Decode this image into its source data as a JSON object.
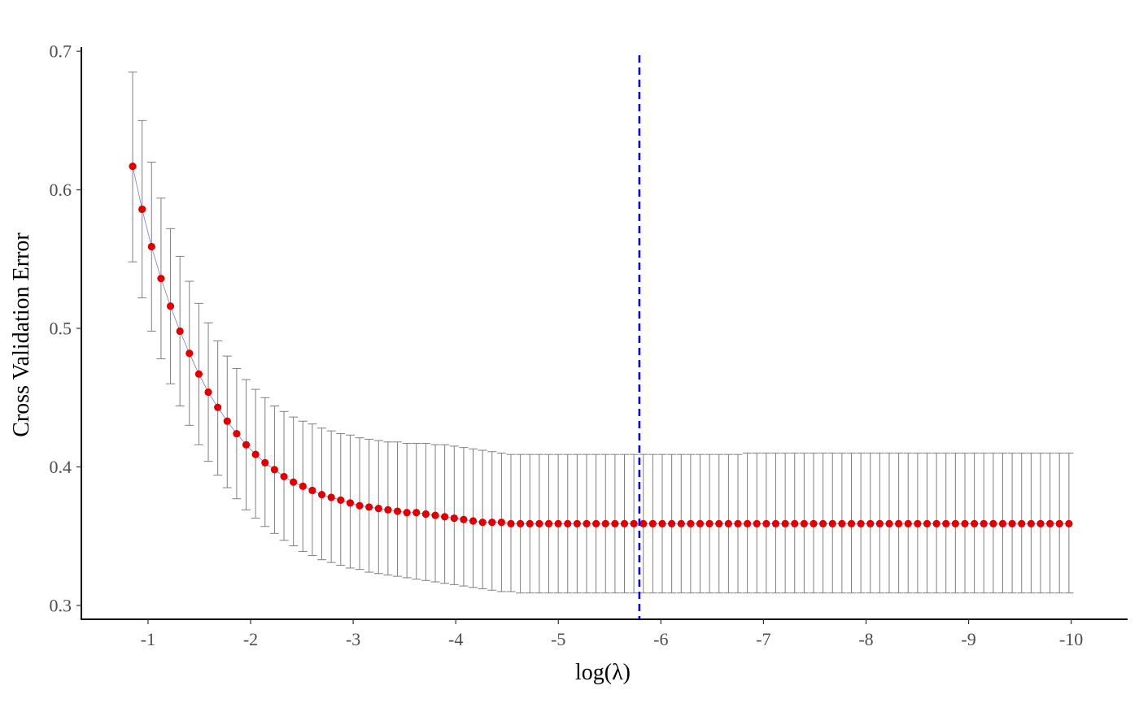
{
  "chart_data": {
    "type": "scatter",
    "title": "",
    "xlabel": "log(λ)",
    "ylabel": "Cross Validation Error",
    "x_reversed": true,
    "xlim": [
      -0.35,
      -10.55
    ],
    "ylim": [
      0.29,
      0.703
    ],
    "x_ticks": [
      -1,
      -2,
      -3,
      -4,
      -5,
      -6,
      -7,
      -8,
      -9,
      -10
    ],
    "x_tick_labels": [
      "-1",
      "-2",
      "-3",
      "-4",
      "-5",
      "-6",
      "-7",
      "-8",
      "-9",
      "-10"
    ],
    "y_ticks": [
      0.3,
      0.4,
      0.5,
      0.6,
      0.7
    ],
    "y_tick_labels": [
      "0.3",
      "0.4",
      "0.5",
      "0.6",
      "0.7"
    ],
    "grid": false,
    "legend": "none",
    "colors": {
      "point": "#e00000",
      "line": "#7a7ad0",
      "errorbar": "#7f7f7f",
      "vline": "#0000e6",
      "axis": "#000000"
    },
    "vline_x": -5.79,
    "x_start": -0.85,
    "x_step": -0.0922,
    "y_mean": [
      0.617,
      0.586,
      0.559,
      0.536,
      0.516,
      0.498,
      0.482,
      0.467,
      0.454,
      0.443,
      0.433,
      0.424,
      0.416,
      0.409,
      0.403,
      0.398,
      0.393,
      0.389,
      0.386,
      0.383,
      0.38,
      0.378,
      0.376,
      0.374,
      0.372,
      0.371,
      0.37,
      0.369,
      0.368,
      0.367,
      0.367,
      0.366,
      0.365,
      0.364,
      0.363,
      0.362,
      0.361,
      0.36,
      0.36,
      0.36,
      0.359,
      0.359,
      0.359,
      0.359,
      0.359,
      0.359,
      0.359,
      0.359,
      0.359,
      0.359,
      0.359,
      0.359,
      0.359,
      0.359,
      0.359,
      0.359,
      0.359,
      0.359,
      0.359,
      0.359,
      0.359,
      0.359,
      0.359,
      0.359,
      0.359,
      0.359,
      0.359,
      0.359,
      0.359,
      0.359,
      0.359,
      0.359,
      0.359,
      0.359,
      0.359,
      0.359,
      0.359,
      0.359,
      0.359,
      0.359,
      0.359,
      0.359,
      0.359,
      0.359,
      0.359,
      0.359,
      0.359,
      0.359,
      0.359,
      0.359,
      0.359,
      0.359,
      0.359,
      0.359,
      0.359,
      0.359,
      0.359,
      0.359,
      0.359,
      0.359
    ],
    "y_upper": [
      0.685,
      0.65,
      0.62,
      0.594,
      0.572,
      0.552,
      0.534,
      0.518,
      0.504,
      0.491,
      0.48,
      0.471,
      0.463,
      0.456,
      0.45,
      0.444,
      0.44,
      0.436,
      0.433,
      0.431,
      0.428,
      0.426,
      0.424,
      0.423,
      0.421,
      0.42,
      0.419,
      0.418,
      0.418,
      0.417,
      0.417,
      0.417,
      0.416,
      0.416,
      0.415,
      0.414,
      0.413,
      0.412,
      0.411,
      0.41,
      0.409,
      0.409,
      0.409,
      0.409,
      0.409,
      0.409,
      0.409,
      0.409,
      0.409,
      0.409,
      0.409,
      0.409,
      0.409,
      0.409,
      0.409,
      0.409,
      0.409,
      0.409,
      0.409,
      0.409,
      0.409,
      0.409,
      0.409,
      0.409,
      0.409,
      0.41,
      0.41,
      0.41,
      0.41,
      0.41,
      0.41,
      0.41,
      0.41,
      0.41,
      0.41,
      0.41,
      0.41,
      0.41,
      0.41,
      0.41,
      0.41,
      0.41,
      0.41,
      0.41,
      0.41,
      0.41,
      0.41,
      0.41,
      0.41,
      0.41,
      0.41,
      0.41,
      0.41,
      0.41,
      0.41,
      0.41,
      0.41,
      0.41,
      0.41,
      0.41
    ],
    "y_lower": [
      0.548,
      0.522,
      0.498,
      0.478,
      0.46,
      0.444,
      0.43,
      0.416,
      0.404,
      0.394,
      0.385,
      0.377,
      0.369,
      0.363,
      0.357,
      0.352,
      0.347,
      0.343,
      0.339,
      0.336,
      0.333,
      0.331,
      0.329,
      0.327,
      0.326,
      0.324,
      0.323,
      0.322,
      0.321,
      0.32,
      0.319,
      0.318,
      0.317,
      0.316,
      0.315,
      0.314,
      0.313,
      0.312,
      0.311,
      0.31,
      0.31,
      0.309,
      0.309,
      0.309,
      0.309,
      0.309,
      0.309,
      0.309,
      0.309,
      0.309,
      0.309,
      0.309,
      0.309,
      0.309,
      0.309,
      0.309,
      0.309,
      0.309,
      0.309,
      0.309,
      0.309,
      0.309,
      0.309,
      0.309,
      0.309,
      0.309,
      0.309,
      0.309,
      0.309,
      0.309,
      0.309,
      0.309,
      0.309,
      0.309,
      0.309,
      0.309,
      0.309,
      0.309,
      0.309,
      0.309,
      0.309,
      0.309,
      0.309,
      0.309,
      0.309,
      0.309,
      0.309,
      0.309,
      0.309,
      0.309,
      0.309,
      0.309,
      0.309,
      0.309,
      0.309,
      0.309,
      0.309,
      0.309,
      0.309,
      0.309
    ]
  }
}
